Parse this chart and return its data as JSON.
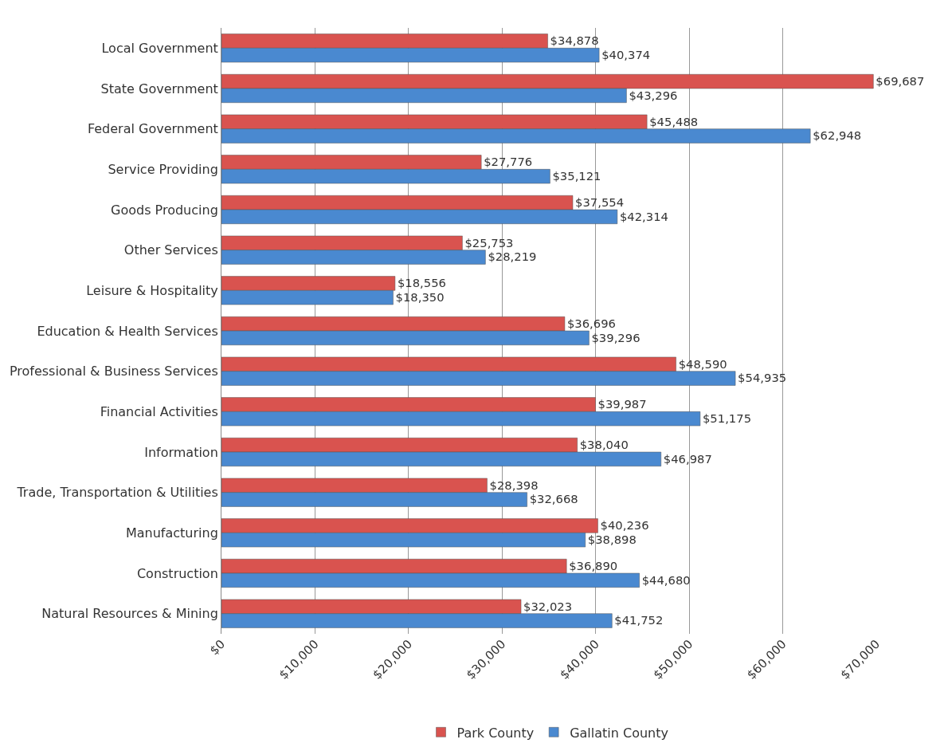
{
  "chart_data": {
    "type": "bar",
    "orientation": "horizontal",
    "categories": [
      "Local Government",
      "State Government",
      "Federal Government",
      "Service Providing",
      "Goods Producing",
      "Other Services",
      "Leisure & Hospitality",
      "Education & Health Services",
      "Professional & Business Services",
      "Financial Activities",
      "Information",
      "Trade, Transportation & Utilities",
      "Manufacturing",
      "Construction",
      "Natural Resources & Mining"
    ],
    "series": [
      {
        "name": "Park County",
        "color": "#d9534f",
        "values": [
          34878,
          69687,
          45488,
          27776,
          37554,
          25753,
          18556,
          36696,
          48590,
          39987,
          38040,
          28398,
          40236,
          36890,
          32023
        ],
        "value_labels": [
          "$34,878",
          "$69,687",
          "$45,488",
          "$27,776",
          "$37,554",
          "$25,753",
          "$18,556",
          "$36,696",
          "$48,590",
          "$39,987",
          "$38,040",
          "$28,398",
          "$40,236",
          "$36,890",
          "$32,023"
        ]
      },
      {
        "name": "Gallatin County",
        "color": "#4a89d0",
        "values": [
          40374,
          43296,
          62948,
          35121,
          42314,
          28219,
          18350,
          39296,
          54935,
          51175,
          46987,
          32668,
          38898,
          44680,
          41752
        ],
        "value_labels": [
          "$40,374",
          "$43,296",
          "$62,948",
          "$35,121",
          "$42,314",
          "$28,219",
          "$18,350",
          "$39,296",
          "$54,935",
          "$51,175",
          "$46,987",
          "$32,668",
          "$38,898",
          "$44,680",
          "$41,752"
        ]
      }
    ],
    "xlim": [
      0,
      70000
    ],
    "xticks": [
      {
        "value": 0,
        "label": "$0"
      },
      {
        "value": 10000,
        "label": "$10,000"
      },
      {
        "value": 20000,
        "label": "$20,000"
      },
      {
        "value": 30000,
        "label": "$30,000"
      },
      {
        "value": 40000,
        "label": "$40,000"
      },
      {
        "value": 50000,
        "label": "$50,000"
      },
      {
        "value": 60000,
        "label": "$60,000"
      },
      {
        "value": 70000,
        "label": "$70,000"
      }
    ],
    "grid": "x",
    "legend": "bottom"
  }
}
